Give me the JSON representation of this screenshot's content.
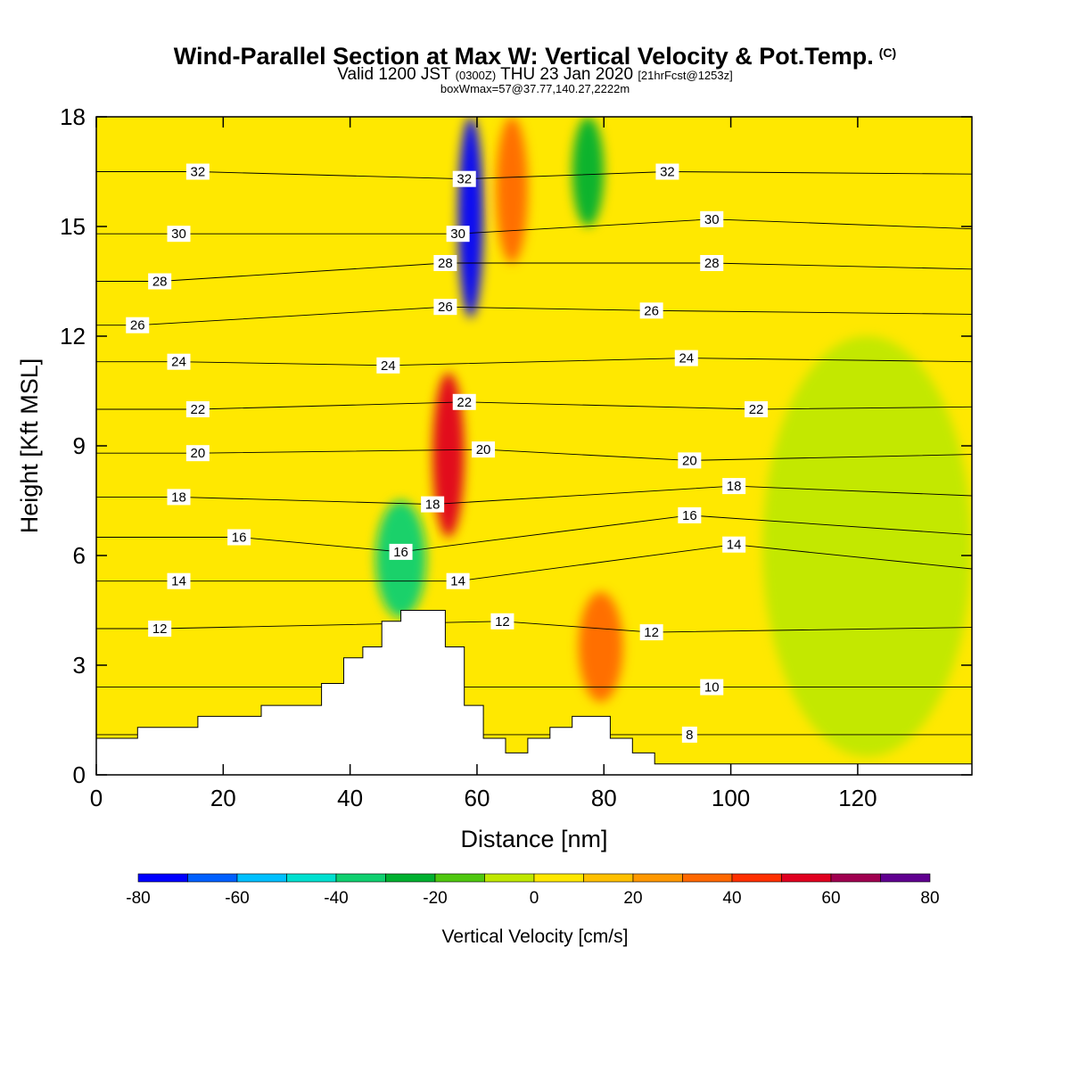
{
  "header": {
    "title": "Wind-Parallel Section at Max W: Vertical Velocity & Pot.Temp.",
    "copyright": "(C)",
    "valid_prefix": "Valid 1200 JST",
    "valid_zulu": "(0300Z)",
    "valid_date": "THU 23 Jan 2020",
    "forecast": "[21hrFcst@1253z]",
    "box_info": "boxWmax=57@37.77,140.27,2222m"
  },
  "chart_data": {
    "type": "heatmap",
    "xlabel": "Distance [nm]",
    "ylabel": "Height [Kft MSL]",
    "xlim": [
      0,
      138
    ],
    "ylim": [
      0,
      18
    ],
    "x_ticks": [
      0,
      20,
      40,
      60,
      80,
      100,
      120
    ],
    "y_ticks": [
      0,
      3,
      6,
      9,
      12,
      15,
      18
    ],
    "colorbar": {
      "title": "Vertical Velocity [cm/s]",
      "bounds": [
        -80,
        -70,
        -60,
        -50,
        -40,
        -30,
        -20,
        -10,
        0,
        10,
        20,
        30,
        40,
        50,
        60,
        70,
        80
      ],
      "tick_labels": [
        "-80",
        "-60",
        "-40",
        "-20",
        "0",
        "20",
        "40",
        "60",
        "80"
      ],
      "colors": [
        "#0000ff",
        "#0060ff",
        "#00c0ff",
        "#00e0d0",
        "#10d070",
        "#00b030",
        "#50c810",
        "#c0e800",
        "#ffe800",
        "#ffc000",
        "#ff9800",
        "#ff6800",
        "#ff3000",
        "#e00020",
        "#a00050",
        "#600090"
      ]
    },
    "terrain_profile": {
      "x": [
        0,
        6.5,
        6.5,
        16,
        16,
        26,
        26,
        35.5,
        35.5,
        39,
        39,
        42,
        42,
        45,
        45,
        48,
        48,
        51,
        51,
        55,
        55,
        58,
        58,
        61,
        61,
        64.5,
        64.5,
        68,
        68,
        71.5,
        71.5,
        75,
        75,
        81,
        81,
        84.5,
        84.5,
        88,
        88,
        138
      ],
      "height_kft": [
        1.0,
        1.0,
        1.3,
        1.3,
        1.6,
        1.6,
        1.9,
        1.9,
        2.5,
        2.5,
        3.2,
        3.2,
        3.5,
        3.5,
        4.2,
        4.2,
        4.5,
        4.5,
        4.5,
        4.5,
        3.5,
        3.5,
        1.9,
        1.9,
        1.0,
        1.0,
        0.6,
        0.6,
        1.0,
        1.0,
        1.3,
        1.3,
        1.6,
        1.6,
        1.0,
        1.0,
        0.6,
        0.6,
        0.3,
        0.3
      ]
    },
    "velocity_features": [
      {
        "kind": "downdraft core",
        "x": [
          57,
          61
        ],
        "height_kft": [
          12.5,
          18
        ],
        "value_cm_s": -75
      },
      {
        "kind": "updraft core",
        "x": [
          53,
          58
        ],
        "height_kft": [
          6.5,
          11
        ],
        "value_cm_s": 55
      },
      {
        "kind": "downdraft lee",
        "x": [
          44,
          52
        ],
        "height_kft": [
          4.3,
          7.5
        ],
        "value_cm_s": -40
      },
      {
        "kind": "updraft upper",
        "x": [
          63,
          68
        ],
        "height_kft": [
          14,
          18
        ],
        "value_cm_s": 35
      },
      {
        "kind": "updraft lower",
        "x": [
          76,
          83
        ],
        "height_kft": [
          2,
          5
        ],
        "value_cm_s": 30
      },
      {
        "kind": "downdraft upper",
        "x": [
          75,
          80
        ],
        "height_kft": [
          15,
          18
        ],
        "value_cm_s": -25
      },
      {
        "kind": "sinking band",
        "x": [
          105,
          138
        ],
        "height_kft": [
          0.5,
          12
        ],
        "value_cm_s": -5
      }
    ],
    "theta_contour_labels": [
      {
        "label": "32",
        "x": 16,
        "height_kft": 16.5
      },
      {
        "label": "32",
        "x": 58,
        "height_kft": 16.3
      },
      {
        "label": "32",
        "x": 90,
        "height_kft": 16.5
      },
      {
        "label": "30",
        "x": 13,
        "height_kft": 14.8
      },
      {
        "label": "30",
        "x": 57,
        "height_kft": 14.8
      },
      {
        "label": "30",
        "x": 97,
        "height_kft": 15.2
      },
      {
        "label": "28",
        "x": 10,
        "height_kft": 13.5
      },
      {
        "label": "28",
        "x": 55,
        "height_kft": 14.0
      },
      {
        "label": "28",
        "x": 97,
        "height_kft": 14.0
      },
      {
        "label": "26",
        "x": 6.5,
        "height_kft": 12.3
      },
      {
        "label": "26",
        "x": 55,
        "height_kft": 12.8
      },
      {
        "label": "26",
        "x": 87.5,
        "height_kft": 12.7
      },
      {
        "label": "24",
        "x": 13,
        "height_kft": 11.3
      },
      {
        "label": "24",
        "x": 46,
        "height_kft": 11.2
      },
      {
        "label": "24",
        "x": 93,
        "height_kft": 11.4
      },
      {
        "label": "22",
        "x": 16,
        "height_kft": 10.0
      },
      {
        "label": "22",
        "x": 58,
        "height_kft": 10.2
      },
      {
        "label": "22",
        "x": 104,
        "height_kft": 10.0
      },
      {
        "label": "20",
        "x": 16,
        "height_kft": 8.8
      },
      {
        "label": "20",
        "x": 61,
        "height_kft": 8.9
      },
      {
        "label": "20",
        "x": 93.5,
        "height_kft": 8.6
      },
      {
        "label": "18",
        "x": 13,
        "height_kft": 7.6
      },
      {
        "label": "18",
        "x": 53,
        "height_kft": 7.4
      },
      {
        "label": "18",
        "x": 100.5,
        "height_kft": 7.9
      },
      {
        "label": "16",
        "x": 22.5,
        "height_kft": 6.5
      },
      {
        "label": "16",
        "x": 48,
        "height_kft": 6.1
      },
      {
        "label": "16",
        "x": 93.5,
        "height_kft": 7.1
      },
      {
        "label": "14",
        "x": 13,
        "height_kft": 5.3
      },
      {
        "label": "14",
        "x": 57,
        "height_kft": 5.3
      },
      {
        "label": "14",
        "x": 100.5,
        "height_kft": 6.3
      },
      {
        "label": "12",
        "x": 10,
        "height_kft": 4.0
      },
      {
        "label": "12",
        "x": 64,
        "height_kft": 4.2
      },
      {
        "label": "12",
        "x": 87.5,
        "height_kft": 3.9
      },
      {
        "label": "10",
        "x": 97,
        "height_kft": 2.4
      },
      {
        "label": "8",
        "x": 93.5,
        "height_kft": 1.1
      }
    ]
  }
}
